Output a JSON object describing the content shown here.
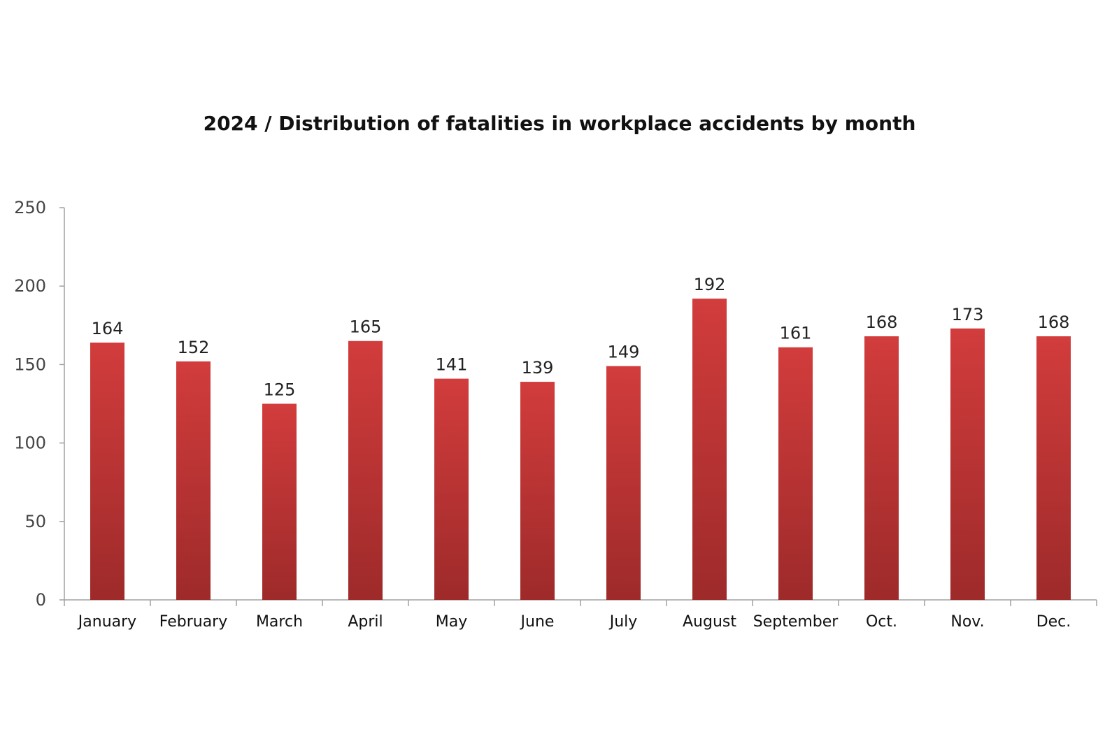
{
  "chart_data": {
    "type": "bar",
    "title": "2024 / Distribution of fatalities in workplace accidents by month",
    "categories": [
      "January",
      "February",
      "March",
      "April",
      "May",
      "June",
      "July",
      "August",
      "September",
      "Oct.",
      "Nov.",
      "Dec."
    ],
    "values": [
      164,
      152,
      125,
      165,
      141,
      139,
      149,
      192,
      161,
      168,
      173,
      168
    ],
    "xlabel": "",
    "ylabel": "",
    "ylim": [
      0,
      250
    ],
    "yticks": [
      0,
      50,
      100,
      150,
      200,
      250
    ],
    "grid": false,
    "legend": "none",
    "data_labels": true,
    "colors": {
      "bar_top": "#d23c3c",
      "bar_bottom": "#9e2a2a",
      "axis": "#a0a0a0"
    }
  }
}
